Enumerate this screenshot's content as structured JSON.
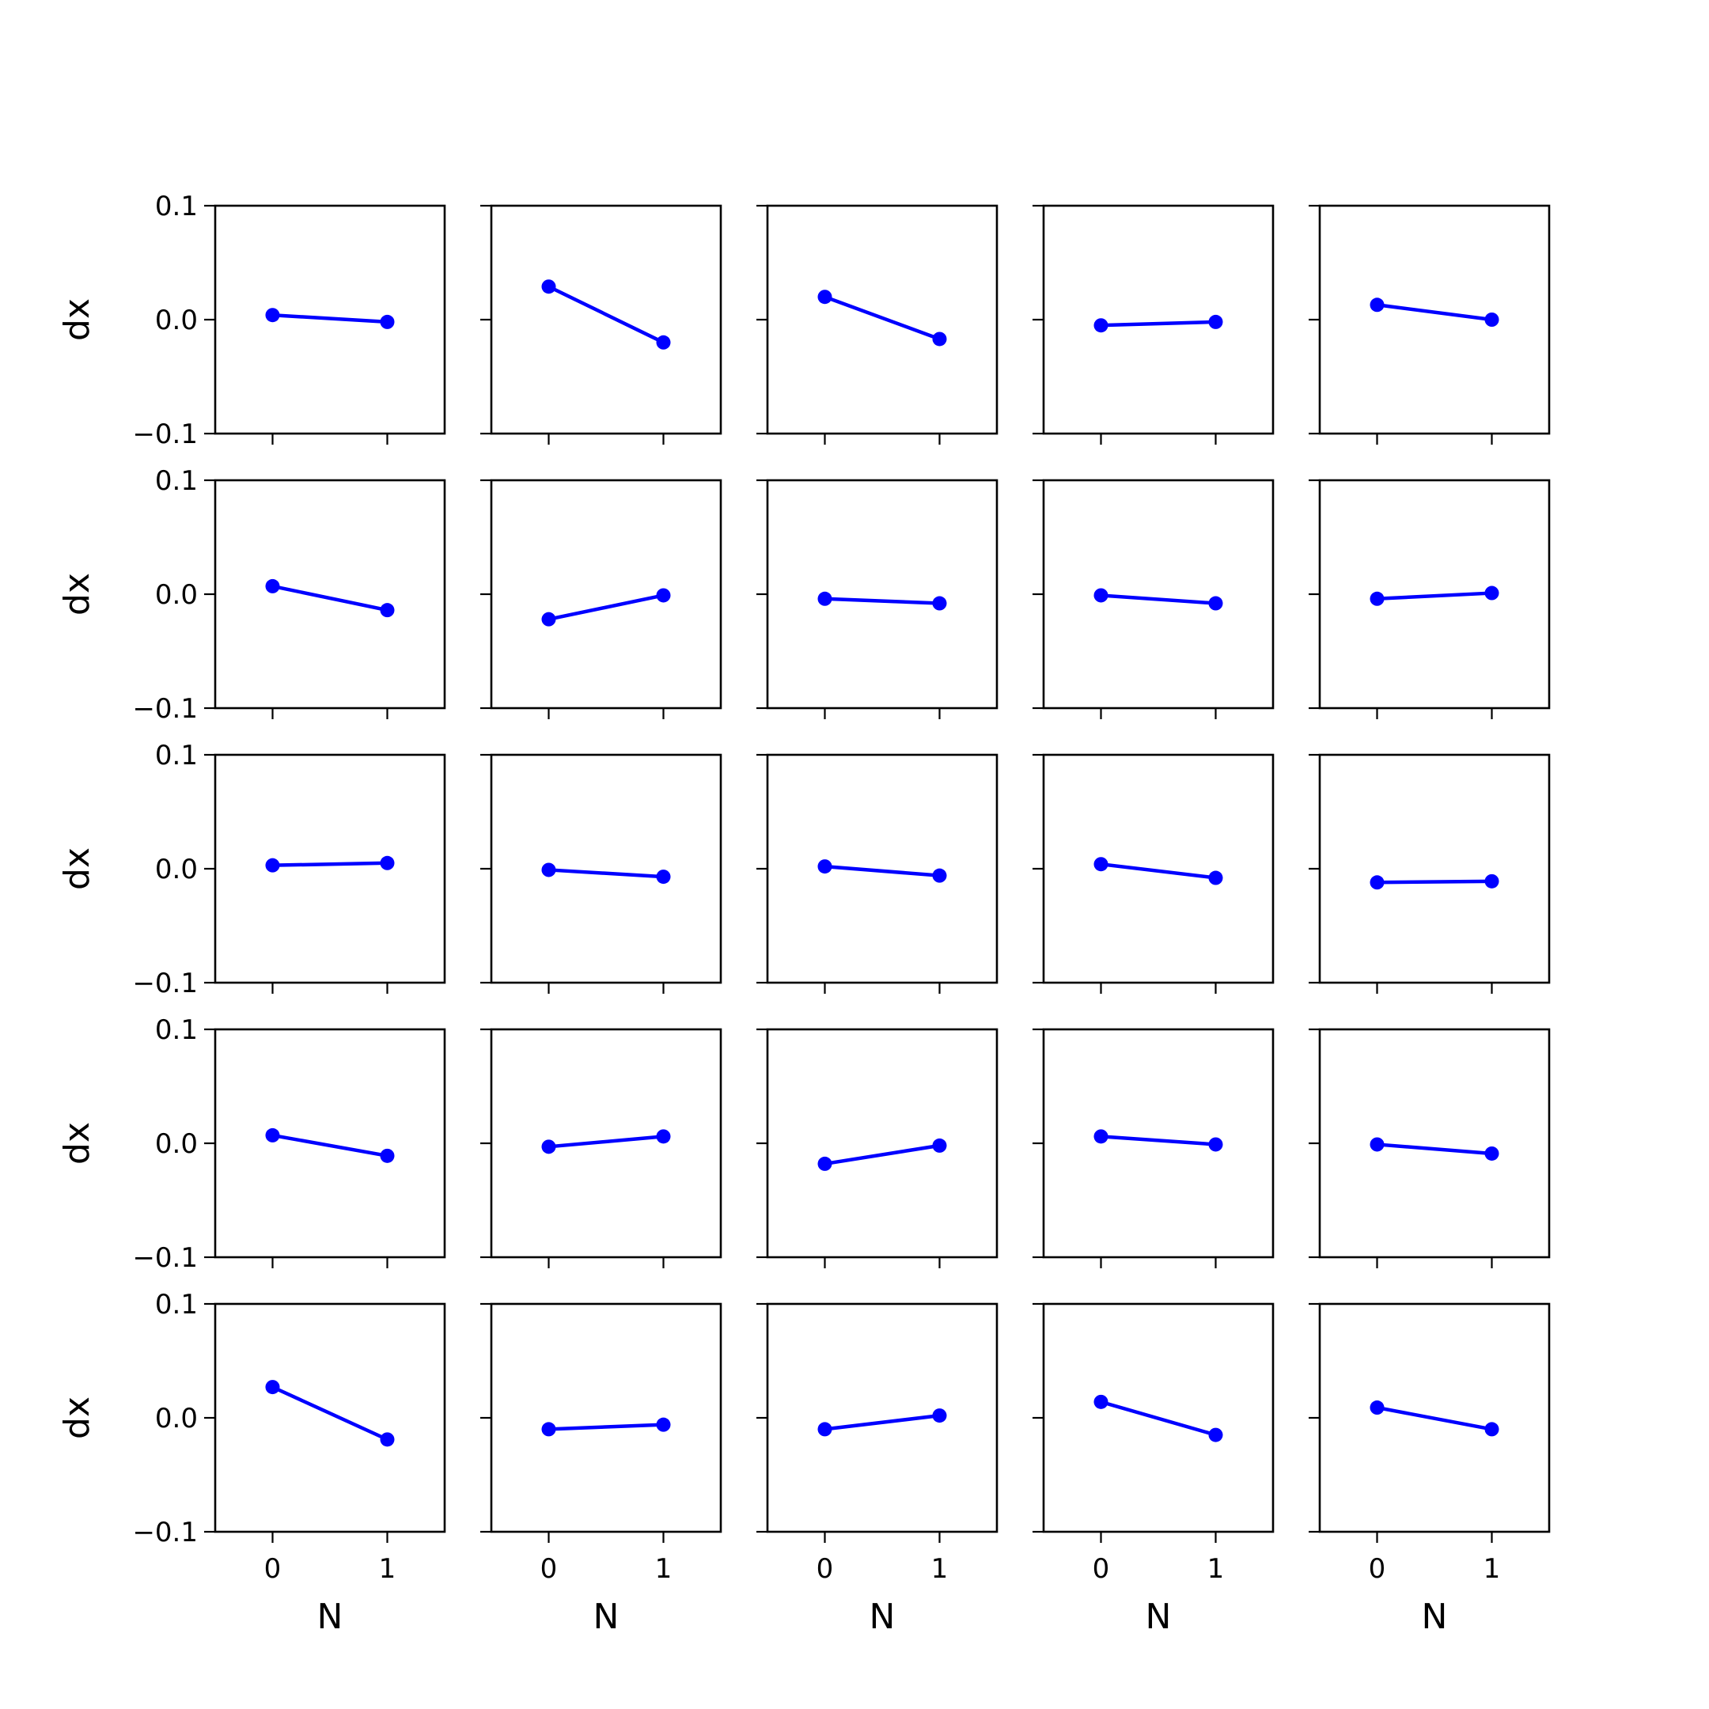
{
  "chart_data": {
    "type": "line",
    "layout": {
      "rows": 5,
      "cols": 5,
      "sharex": true,
      "sharey": true
    },
    "xlabel": "N",
    "ylabel": "dx",
    "xlim": [
      -0.5,
      1.5
    ],
    "ylim": [
      -0.1,
      0.1
    ],
    "xticks": [
      0,
      1
    ],
    "xtick_labels": [
      "0",
      "1"
    ],
    "yticks": [
      0.1,
      0.0,
      -0.1
    ],
    "ytick_labels": [
      "0.1",
      "0.0",
      "−0.1"
    ],
    "grid": false,
    "legend": null,
    "line_color": "#0000ff",
    "marker": "circle",
    "panels": [
      {
        "x": [
          0,
          1
        ],
        "y": [
          0.004,
          -0.002
        ]
      },
      {
        "x": [
          0,
          1
        ],
        "y": [
          0.029,
          -0.02
        ]
      },
      {
        "x": [
          0,
          1
        ],
        "y": [
          0.02,
          -0.017
        ]
      },
      {
        "x": [
          0,
          1
        ],
        "y": [
          -0.005,
          -0.002
        ]
      },
      {
        "x": [
          0,
          1
        ],
        "y": [
          0.013,
          0.0
        ]
      },
      {
        "x": [
          0,
          1
        ],
        "y": [
          0.007,
          -0.014
        ]
      },
      {
        "x": [
          0,
          1
        ],
        "y": [
          -0.022,
          -0.001
        ]
      },
      {
        "x": [
          0,
          1
        ],
        "y": [
          -0.004,
          -0.008
        ]
      },
      {
        "x": [
          0,
          1
        ],
        "y": [
          -0.001,
          -0.008
        ]
      },
      {
        "x": [
          0,
          1
        ],
        "y": [
          -0.004,
          0.001
        ]
      },
      {
        "x": [
          0,
          1
        ],
        "y": [
          0.003,
          0.005
        ]
      },
      {
        "x": [
          0,
          1
        ],
        "y": [
          -0.001,
          -0.007
        ]
      },
      {
        "x": [
          0,
          1
        ],
        "y": [
          0.002,
          -0.006
        ]
      },
      {
        "x": [
          0,
          1
        ],
        "y": [
          0.004,
          -0.008
        ]
      },
      {
        "x": [
          0,
          1
        ],
        "y": [
          -0.012,
          -0.011
        ]
      },
      {
        "x": [
          0,
          1
        ],
        "y": [
          0.007,
          -0.011
        ]
      },
      {
        "x": [
          0,
          1
        ],
        "y": [
          -0.003,
          0.006
        ]
      },
      {
        "x": [
          0,
          1
        ],
        "y": [
          -0.018,
          -0.002
        ]
      },
      {
        "x": [
          0,
          1
        ],
        "y": [
          0.006,
          -0.001
        ]
      },
      {
        "x": [
          0,
          1
        ],
        "y": [
          -0.001,
          -0.009
        ]
      },
      {
        "x": [
          0,
          1
        ],
        "y": [
          0.027,
          -0.019
        ]
      },
      {
        "x": [
          0,
          1
        ],
        "y": [
          -0.01,
          -0.006
        ]
      },
      {
        "x": [
          0,
          1
        ],
        "y": [
          -0.01,
          0.002
        ]
      },
      {
        "x": [
          0,
          1
        ],
        "y": [
          0.014,
          -0.015
        ]
      },
      {
        "x": [
          0,
          1
        ],
        "y": [
          0.009,
          -0.01
        ]
      }
    ]
  }
}
